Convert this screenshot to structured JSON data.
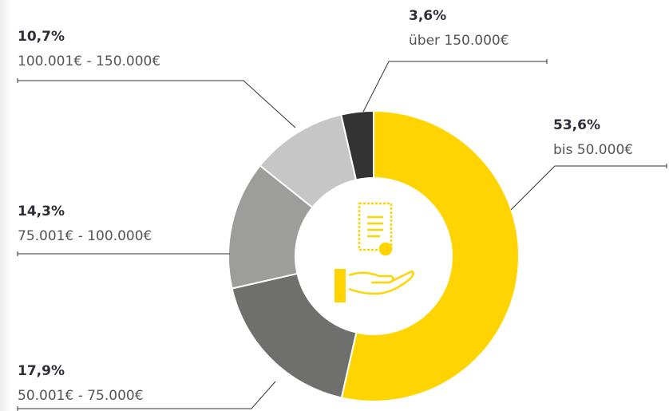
{
  "chart_data": {
    "type": "donut",
    "categories": [
      "bis 50.000€",
      "50.001€ - 75.000€",
      "75.001€ - 100.000€",
      "100.001€ - 150.000€",
      "über 150.000€"
    ],
    "values": [
      53.6,
      17.9,
      14.3,
      10.7,
      3.6
    ],
    "value_labels": [
      "53,6%",
      "17,9%",
      "14,3%",
      "10,7%",
      "3,6%"
    ],
    "colors": [
      "#ffd400",
      "#6f6f6e",
      "#9d9d9c",
      "#c6c6c6",
      "#333333"
    ]
  }
}
